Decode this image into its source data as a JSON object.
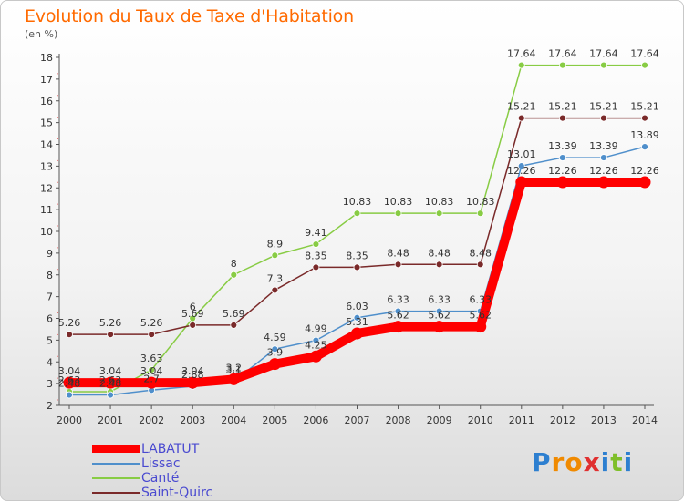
{
  "chart_data": {
    "type": "line",
    "title": "Evolution du Taux de Taxe d'Habitation",
    "unit": "(en %)",
    "x": [
      "2000",
      "2001",
      "2002",
      "2003",
      "2004",
      "2005",
      "2006",
      "2007",
      "2008",
      "2009",
      "2010",
      "2011",
      "2012",
      "2013",
      "2014"
    ],
    "ylim": [
      2,
      18
    ],
    "yticks": [
      2,
      3,
      4,
      5,
      6,
      7,
      8,
      9,
      10,
      11,
      12,
      13,
      14,
      15,
      16,
      17,
      18
    ],
    "series": [
      {
        "name": "LABATUT",
        "color": "#ff0000",
        "width": 10,
        "values": [
          3.04,
          3.04,
          3.04,
          3.04,
          3.2,
          3.9,
          4.25,
          5.31,
          5.62,
          5.62,
          5.62,
          12.26,
          12.26,
          12.26,
          12.26
        ]
      },
      {
        "name": "Lissac",
        "color": "#4f8fcb",
        "width": 1.5,
        "values": [
          2.48,
          2.48,
          2.7,
          2.88,
          3.1,
          4.59,
          4.99,
          6.03,
          6.33,
          6.33,
          6.33,
          13.01,
          13.39,
          13.39,
          13.89
        ]
      },
      {
        "name": "Canté",
        "color": "#88cc44",
        "width": 1.5,
        "values": [
          2.63,
          2.63,
          3.63,
          6.0,
          8.0,
          8.9,
          9.41,
          10.83,
          10.83,
          10.83,
          10.83,
          17.64,
          17.64,
          17.64,
          17.64
        ]
      },
      {
        "name": "Saint-Quirc",
        "color": "#7a2a2a",
        "width": 1.5,
        "values": [
          5.26,
          5.26,
          5.26,
          5.69,
          5.69,
          7.3,
          8.35,
          8.35,
          8.48,
          8.48,
          8.48,
          15.21,
          15.21,
          15.21,
          15.21
        ]
      }
    ],
    "labels": [
      {
        "series": 3,
        "text": [
          "5.26",
          "5.26",
          "5.26",
          "5.69",
          "5.69",
          "7.3",
          "8.35",
          "8.35",
          "8.48",
          "8.48",
          "8.48",
          "15.21",
          "15.21",
          "15.21",
          "15.21"
        ]
      },
      {
        "series": 2,
        "text": [
          "2.63",
          "2.63",
          "3.63",
          "6",
          "8",
          "8.9",
          "9.41",
          "10.83",
          "10.83",
          "10.83",
          "10.83",
          "17.64",
          "17.64",
          "17.64",
          "17.64"
        ]
      },
      {
        "series": 1,
        "text": [
          "2.48",
          "2.48",
          "2.7",
          "2.88",
          "3.1",
          "4.59",
          "4.99",
          "6.03",
          "6.33",
          "6.33",
          "6.33",
          "13.01",
          "13.39",
          "13.39",
          "13.89"
        ]
      },
      {
        "series": 0,
        "text": [
          "3.04",
          "3.04",
          "3.04",
          "3.04",
          "3.2",
          "3.9",
          "4.25",
          "5.31",
          "5.62",
          "5.62",
          "5.62",
          "12.26",
          "12.26",
          "12.26",
          "12.26"
        ]
      }
    ],
    "legend_position": "bottom-left",
    "grid": false
  },
  "logo": {
    "letters": [
      "P",
      "r",
      "o",
      "x",
      "i",
      "t",
      "i"
    ]
  },
  "colors": {
    "title": "#ff6a00",
    "legend_text": "#4a4ad0"
  }
}
